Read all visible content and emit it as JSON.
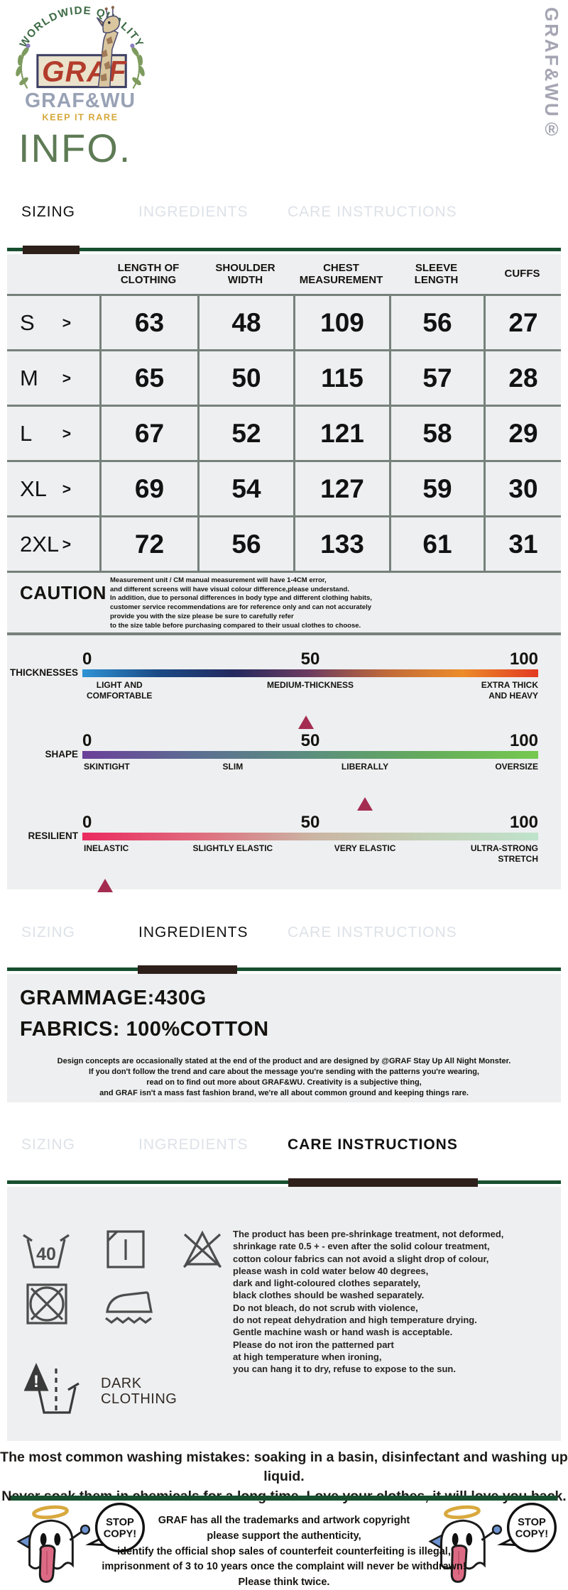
{
  "brand": {
    "arc_text": "WORLDWIDE QUALITY",
    "logo_word": "GRAF",
    "name": "GRAF&WU",
    "tagline": "KEEP IT RARE",
    "vertical_watermark": "GRAF&WU®"
  },
  "page_title": "INFO.",
  "tab_labels": {
    "sizing": "SIZING",
    "ingredients": "INGREDIENTS",
    "care": "CARE INSTRUCTIONS"
  },
  "colors": {
    "accent_green_line": "#174f2f",
    "indicator_dark": "#2d1f1a",
    "title_green": "#5e7b55",
    "panel_gray": "#edeff1",
    "table_border": "#76817b",
    "marker_red": "#a52c51"
  },
  "sizing": {
    "columns": [
      "LENGTH OF\nCLOTHING",
      "SHOULDER\nWIDTH",
      "CHEST\nMEASUREMENT",
      "SLEEVE\nLENGTH",
      "CUFFS"
    ],
    "arrow": ">",
    "rows": [
      {
        "size": "S",
        "values": [
          "63",
          "48",
          "109",
          "56",
          "27"
        ]
      },
      {
        "size": "M",
        "values": [
          "65",
          "50",
          "115",
          "57",
          "28"
        ]
      },
      {
        "size": "L",
        "values": [
          "67",
          "52",
          "121",
          "58",
          "29"
        ]
      },
      {
        "size": "XL",
        "values": [
          "69",
          "54",
          "127",
          "59",
          "30"
        ]
      },
      {
        "size": "2XL",
        "values": [
          "72",
          "56",
          "133",
          "61",
          "31"
        ]
      }
    ],
    "caution_label": "CAUTION",
    "caution_text": "Measurement unit / CM manual measurement will have 1-4CM error,\nand different screens will have visual colour difference,please understand.\nIn addition, due to personal differences in body type and different clothing habits,\ncustomer service recommendations are for reference only and can not accurately\nprovide you with the size please be sure to carefully refer\nto the size table before purchasing compared to their usual clothes to choose.",
    "scales": [
      {
        "name": "THICKNESSES",
        "ticks": [
          "0",
          "50",
          "100"
        ],
        "zones": [
          "LIGHT AND\nCOMFORTABLE",
          "MEDIUM-THICKNESS",
          "EXTRA THICK\nAND HEAVY"
        ],
        "marker_percent": 49,
        "gradient": [
          "#2e93d4",
          "#1a4a85",
          "#24295f",
          "#6e3c60",
          "#c06a3a",
          "#ec8c2a",
          "#e23a22"
        ]
      },
      {
        "name": "SHAPE",
        "ticks": [
          "0",
          "50",
          "100"
        ],
        "zones": [
          "SKINTIGHT",
          "SLIM",
          "LIBERALLY",
          "OVERSIZE"
        ],
        "marker_percent": 62,
        "gradient": [
          "#6b3f99",
          "#5c6e92",
          "#5b8f7d",
          "#64ab5c",
          "#76c94f"
        ]
      },
      {
        "name": "RESILIENT",
        "ticks": [
          "0",
          "50",
          "100"
        ],
        "zones": [
          "INELASTIC",
          "SLIGHTLY ELASTIC",
          "VERY ELASTIC",
          "ULTRA-STRONG\nSTRETCH"
        ],
        "marker_percent": 5,
        "gradient": [
          "#ea2a60",
          "#e06a7c",
          "#cbb4a2",
          "#c2cfb4",
          "#bfe3cc"
        ]
      }
    ]
  },
  "ingredients": {
    "grammage": "GRAMMAGE:430G",
    "fabrics": "FABRICS: 100%COTTON",
    "note": "Design concepts are occasionally stated at the end of the product and are designed by @GRAF Stay Up All Night Monster.\nIf you don't follow the trend and care about the message you're sending with the patterns you're wearing,\nread on to find out more about GRAF&WU. Creativity is a subjective thing,\nand GRAF isn't a mass fast fashion brand, we're all about common ground and keeping things rare."
  },
  "care": {
    "wash_temp": "40",
    "dark_label": "DARK\nCLOTHING",
    "text": "The product has been pre-shrinkage treatment, not deformed,\nshrinkage rate 0.5 + - even after the solid colour treatment,\ncotton colour fabrics can not avoid a slight drop of colour,\nplease wash in cold water below 40 degrees,\ndark and light-coloured clothes separately,\nblack clothes should be washed separately.\nDo not bleach, do not scrub with violence,\ndo not repeat dehydration and high temperature drying.\nGentle machine wash or hand wash is acceptable.\nPlease do not iron the patterned part\nat high temperature when ironing,\nyou can hang it to dry, refuse to expose to the sun."
  },
  "washing_note": "The most common washing mistakes: soaking in a basin, disinfectant and washing up liquid.\nNever soak them in chemicals for a long time..Love your clothes, it will love you back.",
  "footer": {
    "stop_copy_line1": "STOP",
    "stop_copy_line2": "COPY!",
    "text": "GRAF has all the trademarks and artwork copyright\nplease support the authenticity,\nidentify the official shop sales of counterfeit counterfeiting is illegal,\nimprisonment of 3 to 10 years once the complaint will never be withdrawn!\nPlease think twice."
  }
}
